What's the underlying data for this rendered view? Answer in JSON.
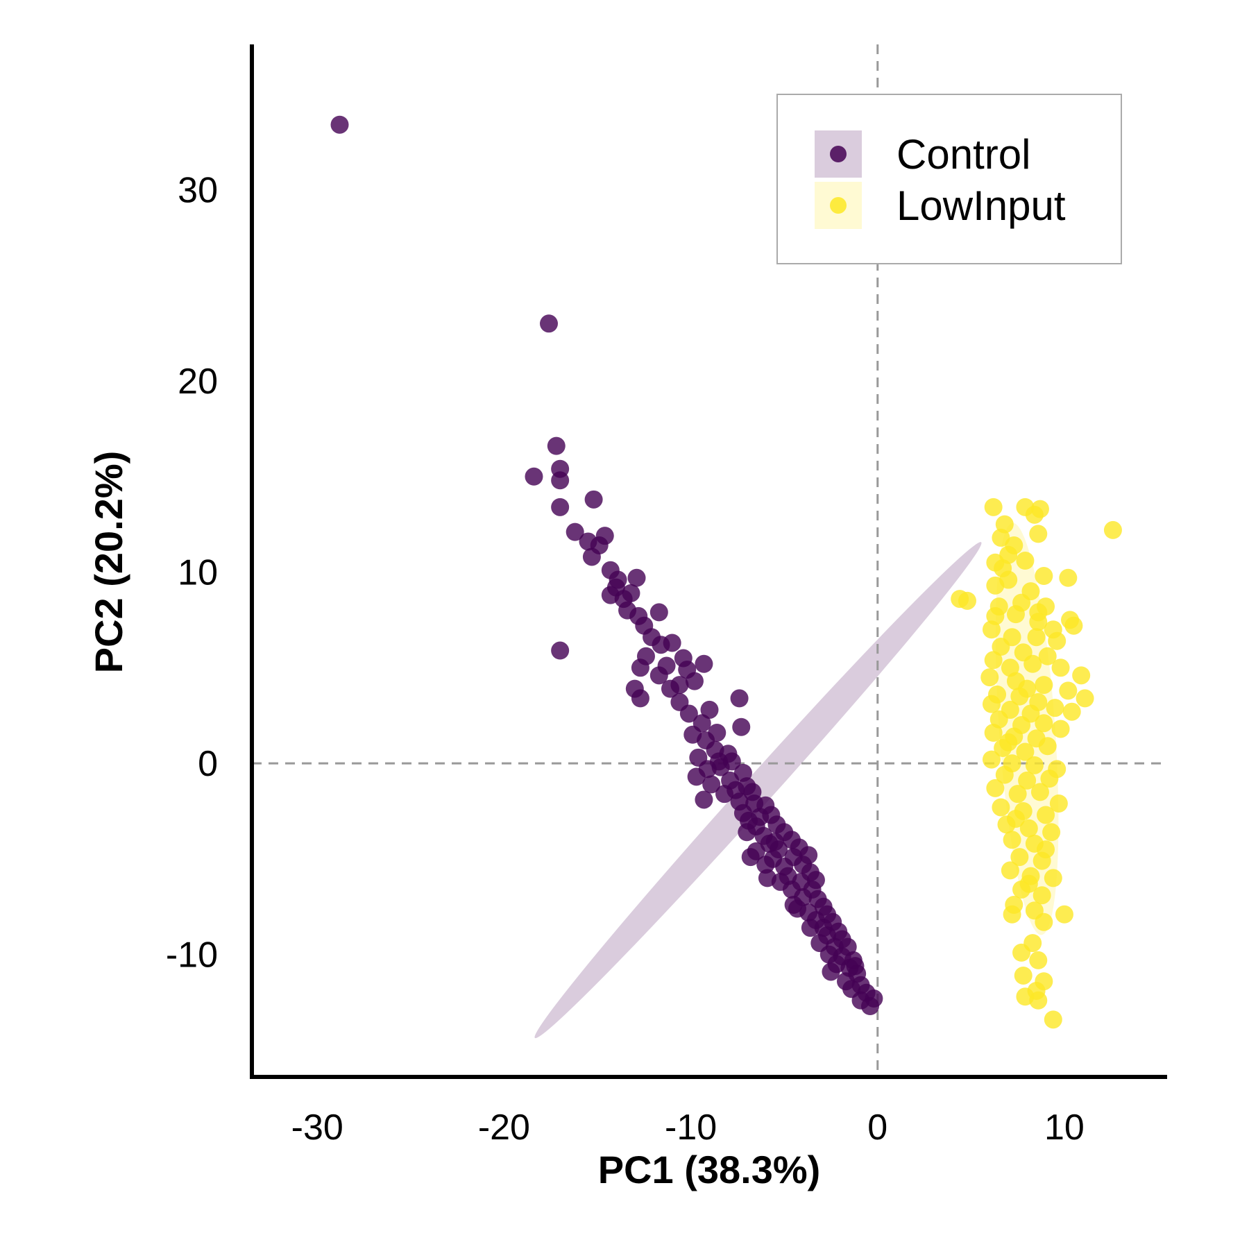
{
  "chart_data": {
    "type": "scatter",
    "xlabel": "PC1 (38.3%)",
    "ylabel": "PC2 (20.2%)",
    "xlim": [
      -33.5,
      15.5
    ],
    "ylim": [
      -16.4,
      37.6
    ],
    "x_ticks": [
      -30,
      -20,
      -10,
      0,
      10
    ],
    "y_ticks": [
      -10,
      0,
      10,
      20,
      30
    ],
    "x_tick_labels": [
      "-30",
      "-20",
      "-10",
      "0",
      "10"
    ],
    "y_tick_labels": [
      "-10",
      "0",
      "10",
      "20",
      "30"
    ],
    "reference_lines": {
      "x": 0,
      "y": 0,
      "style": "dashed",
      "color": "#999999"
    },
    "grid": false,
    "legend": {
      "position": "top-right",
      "entries": [
        "Control",
        "LowInput"
      ]
    },
    "series": [
      {
        "name": "Control",
        "color": "#440154",
        "ellipse": {
          "cx": -6.4,
          "cy": -1.4,
          "rx": 17.8,
          "ry": 0.85,
          "angle_deg": -48
        },
        "points": [
          [
            -28.8,
            33.4
          ],
          [
            -17.6,
            23.0
          ],
          [
            -17.2,
            16.6
          ],
          [
            -17.0,
            15.4
          ],
          [
            -18.4,
            15.0
          ],
          [
            -17.0,
            14.8
          ],
          [
            -15.2,
            13.8
          ],
          [
            -17.0,
            13.4
          ],
          [
            -16.2,
            12.1
          ],
          [
            -15.5,
            11.6
          ],
          [
            -14.6,
            11.9
          ],
          [
            -14.9,
            11.4
          ],
          [
            -15.3,
            10.8
          ],
          [
            -14.3,
            10.1
          ],
          [
            -12.9,
            9.7
          ],
          [
            -13.9,
            9.6
          ],
          [
            -14.3,
            8.8
          ],
          [
            -13.2,
            8.9
          ],
          [
            -11.7,
            7.9
          ],
          [
            -17.0,
            5.9
          ],
          [
            -13.4,
            8.0
          ],
          [
            -12.8,
            7.7
          ],
          [
            -12.5,
            7.2
          ],
          [
            -12.1,
            6.6
          ],
          [
            -11.6,
            6.2
          ],
          [
            -11.0,
            6.3
          ],
          [
            -10.4,
            5.5
          ],
          [
            -9.3,
            5.2
          ],
          [
            -12.4,
            5.6
          ],
          [
            -12.7,
            5.0
          ],
          [
            -11.7,
            4.6
          ],
          [
            -10.2,
            4.9
          ],
          [
            -9.8,
            4.3
          ],
          [
            -13.0,
            3.9
          ],
          [
            -12.7,
            3.4
          ],
          [
            -11.1,
            3.9
          ],
          [
            -10.6,
            3.2
          ],
          [
            -7.4,
            3.4
          ],
          [
            -10.1,
            2.6
          ],
          [
            -9.4,
            2.1
          ],
          [
            -8.6,
            1.6
          ],
          [
            -7.3,
            1.9
          ],
          [
            -9.9,
            1.5
          ],
          [
            -9.2,
            1.2
          ],
          [
            -8.7,
            0.7
          ],
          [
            -9.6,
            0.3
          ],
          [
            -8.0,
            0.5
          ],
          [
            -7.8,
            0.1
          ],
          [
            -9.1,
            -0.3
          ],
          [
            -8.4,
            -0.2
          ],
          [
            -9.7,
            -0.7
          ],
          [
            -8.9,
            -1.1
          ],
          [
            -7.2,
            -0.5
          ],
          [
            -7.9,
            -0.9
          ],
          [
            -8.2,
            -1.6
          ],
          [
            -7.0,
            -1.2
          ],
          [
            -6.7,
            -1.5
          ],
          [
            -9.3,
            -1.9
          ],
          [
            -7.4,
            -2.0
          ],
          [
            -6.6,
            -2.1
          ],
          [
            -7.2,
            -2.6
          ],
          [
            -6.0,
            -2.2
          ],
          [
            -6.9,
            -3.0
          ],
          [
            -5.7,
            -2.7
          ],
          [
            -6.5,
            -3.3
          ],
          [
            -5.4,
            -3.2
          ],
          [
            -7.0,
            -3.6
          ],
          [
            -6.1,
            -3.8
          ],
          [
            -5.0,
            -3.6
          ],
          [
            -5.8,
            -4.2
          ],
          [
            -4.6,
            -4.0
          ],
          [
            -6.5,
            -4.6
          ],
          [
            -5.3,
            -4.5
          ],
          [
            -4.2,
            -4.4
          ],
          [
            -5.6,
            -5.0
          ],
          [
            -4.5,
            -4.9
          ],
          [
            -3.7,
            -4.8
          ],
          [
            -6.0,
            -5.3
          ],
          [
            -5.0,
            -5.4
          ],
          [
            -4.0,
            -5.3
          ],
          [
            -4.8,
            -5.9
          ],
          [
            -3.6,
            -5.7
          ],
          [
            -5.2,
            -6.2
          ],
          [
            -4.1,
            -6.2
          ],
          [
            -3.3,
            -6.1
          ],
          [
            -4.6,
            -6.6
          ],
          [
            -3.5,
            -6.6
          ],
          [
            -4.0,
            -7.0
          ],
          [
            -3.2,
            -7.1
          ],
          [
            -4.5,
            -7.4
          ],
          [
            -2.9,
            -7.5
          ],
          [
            -3.7,
            -7.8
          ],
          [
            -2.7,
            -7.9
          ],
          [
            -3.3,
            -8.2
          ],
          [
            -2.4,
            -8.3
          ],
          [
            -3.6,
            -8.6
          ],
          [
            -2.9,
            -8.6
          ],
          [
            -2.1,
            -8.8
          ],
          [
            -2.7,
            -9.0
          ],
          [
            -1.9,
            -9.2
          ],
          [
            -2.3,
            -9.6
          ],
          [
            -1.6,
            -9.6
          ],
          [
            -2.6,
            -10.0
          ],
          [
            -1.9,
            -10.1
          ],
          [
            -1.3,
            -10.3
          ],
          [
            -2.2,
            -10.5
          ],
          [
            -1.5,
            -10.7
          ],
          [
            -2.5,
            -10.9
          ],
          [
            -1.1,
            -11.0
          ],
          [
            -1.7,
            -11.4
          ],
          [
            -0.9,
            -11.6
          ],
          [
            -1.4,
            -11.8
          ],
          [
            -0.6,
            -12.0
          ],
          [
            -0.2,
            -12.3
          ],
          [
            -0.9,
            -12.4
          ],
          [
            -0.4,
            -12.7
          ],
          [
            -5.5,
            -4.1
          ],
          [
            -6.3,
            -2.8
          ],
          [
            -7.6,
            -1.4
          ],
          [
            -8.5,
            0.1
          ],
          [
            -9.0,
            2.8
          ],
          [
            -10.6,
            4.1
          ],
          [
            -11.3,
            5.1
          ],
          [
            -13.6,
            8.6
          ],
          [
            -14.0,
            9.2
          ],
          [
            -6.8,
            -4.9
          ],
          [
            -5.9,
            -6.0
          ],
          [
            -4.3,
            -7.6
          ],
          [
            -3.1,
            -9.4
          ],
          [
            -1.2,
            -10.6
          ]
        ]
      },
      {
        "name": "LowInput",
        "color": "#FDE725",
        "ellipse": {
          "cx": 8.0,
          "cy": 1.8,
          "rx": 1.5,
          "ry": 10.8,
          "angle_deg": -4
        },
        "points": [
          [
            6.2,
            13.4
          ],
          [
            7.9,
            13.4
          ],
          [
            8.7,
            13.3
          ],
          [
            8.4,
            13.0
          ],
          [
            6.8,
            12.5
          ],
          [
            8.6,
            12.0
          ],
          [
            6.6,
            11.8
          ],
          [
            12.6,
            12.2
          ],
          [
            7.3,
            11.4
          ],
          [
            6.3,
            10.5
          ],
          [
            6.7,
            10.2
          ],
          [
            7.9,
            10.6
          ],
          [
            8.9,
            9.8
          ],
          [
            10.2,
            9.7
          ],
          [
            7.0,
            9.6
          ],
          [
            6.3,
            9.3
          ],
          [
            8.2,
            9.0
          ],
          [
            4.4,
            8.6
          ],
          [
            4.8,
            8.5
          ],
          [
            6.5,
            8.2
          ],
          [
            7.7,
            8.4
          ],
          [
            9.0,
            8.2
          ],
          [
            6.3,
            7.7
          ],
          [
            7.4,
            7.8
          ],
          [
            8.6,
            7.4
          ],
          [
            9.4,
            7.0
          ],
          [
            10.3,
            7.5
          ],
          [
            10.5,
            7.2
          ],
          [
            6.1,
            7.0
          ],
          [
            7.2,
            6.6
          ],
          [
            8.5,
            6.6
          ],
          [
            9.6,
            6.4
          ],
          [
            6.6,
            6.1
          ],
          [
            7.8,
            5.8
          ],
          [
            9.1,
            5.6
          ],
          [
            6.2,
            5.4
          ],
          [
            7.1,
            5.0
          ],
          [
            8.3,
            5.2
          ],
          [
            9.8,
            5.0
          ],
          [
            10.9,
            4.6
          ],
          [
            6.0,
            4.5
          ],
          [
            7.4,
            4.3
          ],
          [
            8.9,
            4.1
          ],
          [
            10.2,
            3.8
          ],
          [
            6.4,
            3.6
          ],
          [
            7.6,
            3.5
          ],
          [
            8.6,
            3.2
          ],
          [
            11.1,
            3.4
          ],
          [
            6.1,
            3.1
          ],
          [
            7.1,
            2.8
          ],
          [
            8.2,
            2.6
          ],
          [
            9.5,
            2.9
          ],
          [
            10.4,
            2.7
          ],
          [
            6.5,
            2.3
          ],
          [
            7.7,
            2.0
          ],
          [
            8.9,
            2.1
          ],
          [
            6.2,
            1.6
          ],
          [
            7.3,
            1.4
          ],
          [
            8.5,
            1.3
          ],
          [
            9.8,
            1.8
          ],
          [
            6.7,
            0.8
          ],
          [
            7.9,
            0.6
          ],
          [
            9.1,
            0.9
          ],
          [
            6.1,
            0.2
          ],
          [
            7.2,
            0.0
          ],
          [
            8.4,
            -0.1
          ],
          [
            9.6,
            -0.3
          ],
          [
            6.8,
            -0.6
          ],
          [
            8.0,
            -0.9
          ],
          [
            9.2,
            -0.8
          ],
          [
            6.3,
            -1.3
          ],
          [
            7.5,
            -1.6
          ],
          [
            8.7,
            -1.5
          ],
          [
            9.7,
            -2.1
          ],
          [
            6.6,
            -2.3
          ],
          [
            7.8,
            -2.5
          ],
          [
            9.0,
            -2.7
          ],
          [
            6.9,
            -3.2
          ],
          [
            8.1,
            -3.4
          ],
          [
            9.3,
            -3.6
          ],
          [
            7.2,
            -4.0
          ],
          [
            8.4,
            -4.2
          ],
          [
            9.0,
            -4.5
          ],
          [
            7.6,
            -4.9
          ],
          [
            8.8,
            -5.1
          ],
          [
            7.1,
            -5.6
          ],
          [
            8.2,
            -5.9
          ],
          [
            9.4,
            -6.0
          ],
          [
            7.7,
            -6.6
          ],
          [
            8.8,
            -6.9
          ],
          [
            7.3,
            -7.4
          ],
          [
            8.4,
            -7.7
          ],
          [
            10.0,
            -7.9
          ],
          [
            7.2,
            -7.9
          ],
          [
            8.9,
            -8.3
          ],
          [
            8.3,
            -9.4
          ],
          [
            7.7,
            -9.9
          ],
          [
            8.6,
            -10.3
          ],
          [
            7.8,
            -11.1
          ],
          [
            8.9,
            -11.4
          ],
          [
            8.5,
            -11.9
          ],
          [
            7.9,
            -12.2
          ],
          [
            8.6,
            -12.4
          ],
          [
            9.4,
            -13.4
          ],
          [
            7.0,
            1.1
          ],
          [
            8.0,
            3.9
          ],
          [
            7.4,
            -2.9
          ],
          [
            8.6,
            7.9
          ],
          [
            7.0,
            10.9
          ],
          [
            8.1,
            -6.3
          ]
        ]
      }
    ]
  }
}
